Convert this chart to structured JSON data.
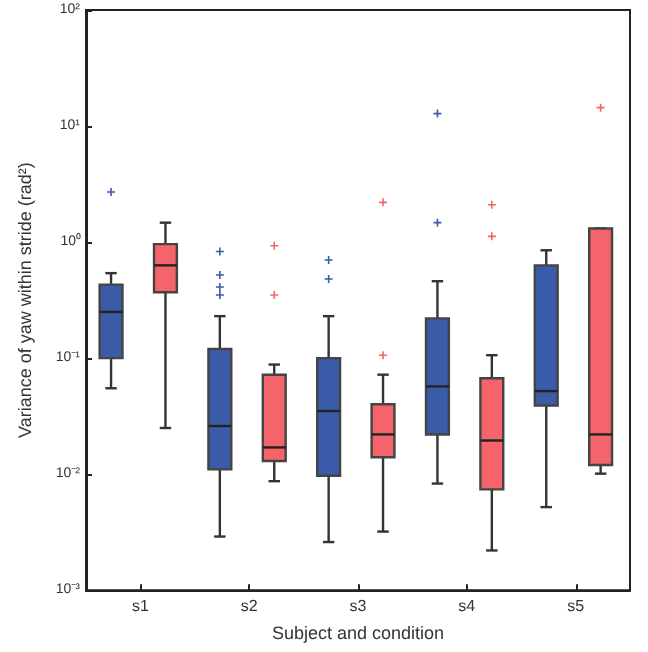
{
  "chart_data": {
    "type": "box",
    "xlabel": "Subject and condition",
    "ylabel": "Variance of yaw within stride (rad²)",
    "categories": [
      "s1",
      "s2",
      "s3",
      "s4",
      "s5"
    ],
    "log": "y",
    "ylim": [
      0.001,
      100
    ],
    "yticks": [
      {
        "value": 0.001,
        "label": "10⁻³"
      },
      {
        "value": 0.01,
        "label": "10⁻²"
      },
      {
        "value": 0.1,
        "label": "10⁻¹"
      },
      {
        "value": 1,
        "label": "10⁰"
      },
      {
        "value": 10,
        "label": "10¹"
      },
      {
        "value": 100,
        "label": "10²"
      }
    ],
    "grid": false,
    "series": [
      {
        "color": "#3a5ba8",
        "boxes": [
          {
            "low": 0.055,
            "q1": 0.1,
            "median": 0.25,
            "q3": 0.43,
            "high": 0.54,
            "outliers": [
              2.7
            ]
          },
          {
            "low": 0.0029,
            "q1": 0.011,
            "median": 0.026,
            "q3": 0.12,
            "high": 0.23,
            "outliers": [
              0.83,
              0.52,
              0.41,
              0.35
            ]
          },
          {
            "low": 0.0026,
            "q1": 0.0097,
            "median": 0.035,
            "q3": 0.1,
            "high": 0.23,
            "outliers": [
              0.7,
              0.48
            ]
          },
          {
            "low": 0.0083,
            "q1": 0.022,
            "median": 0.057,
            "q3": 0.22,
            "high": 0.46,
            "outliers": [
              12.8,
              1.47
            ]
          },
          {
            "low": 0.0052,
            "q1": 0.039,
            "median": 0.052,
            "q3": 0.63,
            "high": 0.85
          }
        ]
      },
      {
        "color": "#f4646a",
        "boxes": [
          {
            "low": 0.025,
            "q1": 0.37,
            "median": 0.63,
            "q3": 0.96,
            "high": 1.47
          },
          {
            "low": 0.0087,
            "q1": 0.013,
            "median": 0.017,
            "q3": 0.072,
            "high": 0.088,
            "outliers": [
              0.93,
              0.35
            ]
          },
          {
            "low": 0.0032,
            "q1": 0.014,
            "median": 0.022,
            "q3": 0.04,
            "high": 0.072,
            "outliers": [
              0.106,
              2.2
            ]
          },
          {
            "low": 0.0022,
            "q1": 0.0074,
            "median": 0.0195,
            "q3": 0.067,
            "high": 0.106,
            "outliers": [
              2.1,
              1.12
            ]
          },
          {
            "low": 0.0101,
            "q1": 0.012,
            "median": 0.022,
            "q3": 1.31,
            "high": 1.31,
            "outliers": [
              14.4
            ]
          }
        ]
      }
    ]
  }
}
